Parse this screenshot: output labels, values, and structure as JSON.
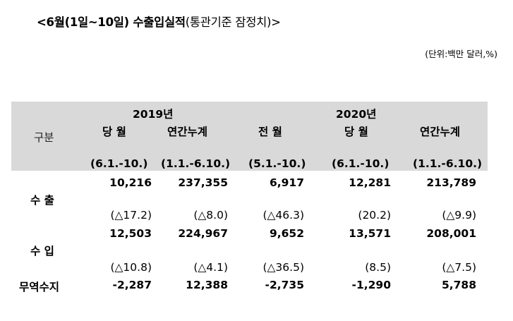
{
  "title": {
    "main": "<6월(1일~10일) 수출입실적",
    "sub": "(통관기준 잠정치)>"
  },
  "unit_note": "(단위:백만 달러,%)",
  "table": {
    "row_header_label": "구분",
    "year_2019": "2019년",
    "year_2020": "2020년",
    "columns": [
      {
        "label": "당 월",
        "period": "(6.1.-10.)"
      },
      {
        "label": "연간누계",
        "period": "(1.1.-6.10.)"
      },
      {
        "label": "전 월",
        "period": "(5.1.-10.)"
      },
      {
        "label": "당 월",
        "period": "(6.1.-10.)"
      },
      {
        "label": "연간누계",
        "period": "(1.1.-6.10.)"
      }
    ],
    "rows": [
      {
        "label": "수 출",
        "values": [
          "10,216",
          "237,355",
          "6,917",
          "12,281",
          "213,789"
        ],
        "changes": [
          "(△17.2)",
          "(△8.0)",
          "(△46.3)",
          "(20.2)",
          "(△9.9)"
        ]
      },
      {
        "label": "수 입",
        "values": [
          "12,503",
          "224,967",
          "9,652",
          "13,571",
          "208,001"
        ],
        "changes": [
          "(△10.8)",
          "(△4.1)",
          "(△36.5)",
          "(8.5)",
          "(△7.5)"
        ]
      },
      {
        "label": "무역수지",
        "values": [
          "-2,287",
          "12,388",
          "-2,735",
          "-1,290",
          "5,788"
        ]
      }
    ]
  }
}
